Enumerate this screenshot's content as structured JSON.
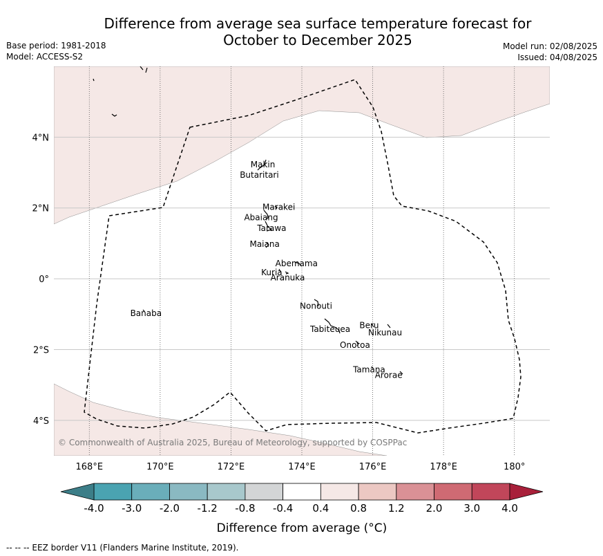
{
  "title_line1": "Difference from average sea surface temperature forecast for",
  "title_line2": "October to December 2025",
  "meta_left": {
    "base_period": "Base period: 1981-2018",
    "model": "Model: ACCESS-S2"
  },
  "meta_right": {
    "model_run": "Model run: 02/08/2025",
    "issued": "Issued: 04/08/2025"
  },
  "map": {
    "lon_range": [
      167,
      181
    ],
    "lat_range": [
      -5,
      6
    ],
    "lon_ticks": [
      168,
      170,
      172,
      174,
      176,
      178,
      180
    ],
    "lon_tick_labels": [
      "168°E",
      "170°E",
      "172°E",
      "174°E",
      "176°E",
      "178°E",
      "180°"
    ],
    "lat_ticks": [
      4,
      2,
      0,
      -2,
      -4
    ],
    "lat_tick_labels": [
      "4°N",
      "2°N",
      "0°",
      "2°S",
      "4°S"
    ],
    "background_category": "-0.4 to 0.4",
    "shaded_category": "0.4 to 0.8",
    "copyright": "© Commonwealth of Australia 2025, Bureau of Meteorology, supported by COSPPac",
    "places": [
      {
        "name": "Makin",
        "lon": 172.9,
        "lat": 3.15
      },
      {
        "name": "Butaritari",
        "lon": 172.8,
        "lat": 2.85
      },
      {
        "name": "Marakei",
        "lon": 173.35,
        "lat": 1.95
      },
      {
        "name": "Abaiang",
        "lon": 172.85,
        "lat": 1.65
      },
      {
        "name": "Tarawa",
        "lon": 173.15,
        "lat": 1.35
      },
      {
        "name": "Maiana",
        "lon": 172.95,
        "lat": 0.9
      },
      {
        "name": "Abemama",
        "lon": 173.85,
        "lat": 0.35
      },
      {
        "name": "Kuria",
        "lon": 173.15,
        "lat": 0.1
      },
      {
        "name": "Aranuka",
        "lon": 173.6,
        "lat": -0.05
      },
      {
        "name": "Nonouti",
        "lon": 174.4,
        "lat": -0.85
      },
      {
        "name": "Banaba",
        "lon": 169.6,
        "lat": -1.05
      },
      {
        "name": "Beru",
        "lon": 175.9,
        "lat": -1.4
      },
      {
        "name": "Nikunau",
        "lon": 176.35,
        "lat": -1.6
      },
      {
        "name": "Tabiteuea",
        "lon": 174.8,
        "lat": -1.5
      },
      {
        "name": "Onotoa",
        "lon": 175.5,
        "lat": -1.95
      },
      {
        "name": "Tamana",
        "lon": 175.9,
        "lat": -2.65
      },
      {
        "name": "Arorae",
        "lon": 176.45,
        "lat": -2.8
      }
    ]
  },
  "colorbar": {
    "title": "Difference from average (°C)",
    "tick_labels": [
      "-4.0",
      "-3.0",
      "-2.0",
      "-1.2",
      "-0.8",
      "-0.4",
      "0.4",
      "0.8",
      "1.2",
      "2.0",
      "3.0",
      "4.0"
    ],
    "colors": [
      "#4aa3b1",
      "#6aaeba",
      "#8ab9c2",
      "#a8c8cc",
      "#d3d5d6",
      "#ffffff",
      "#f5e8e6",
      "#ecc8c3",
      "#da9196",
      "#cf6a73",
      "#c1465a"
    ],
    "under_color": "#3c7e88",
    "over_color": "#a8203a"
  },
  "footer": "--  --  -- EEZ border V11 (Flanders Marine Institute, 2019)."
}
